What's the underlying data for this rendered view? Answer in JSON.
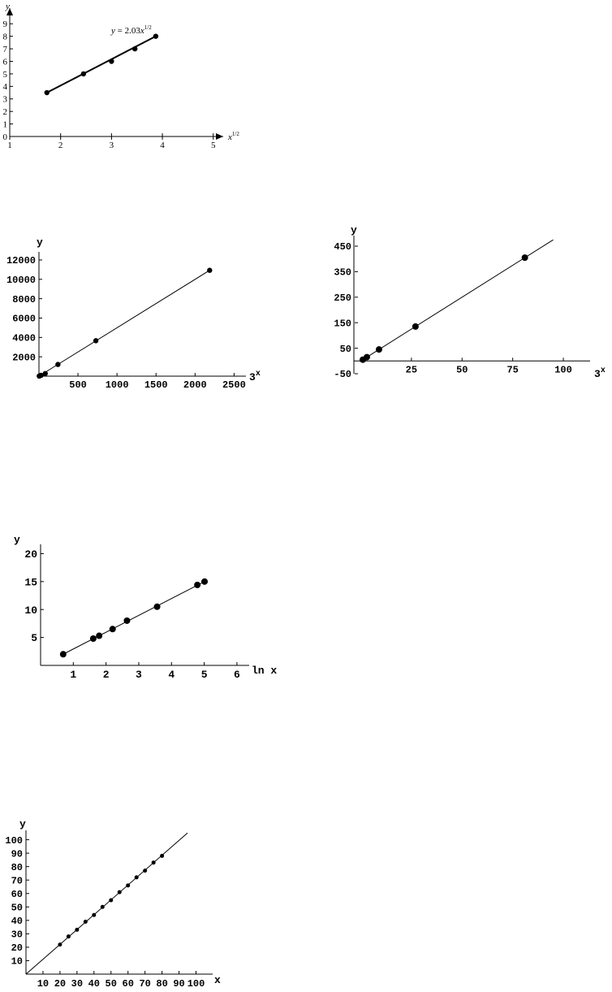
{
  "chart_data": [
    {
      "type": "scatter",
      "xlabel": "x^1/2",
      "ylabel": "y",
      "xlim": [
        1,
        5.1
      ],
      "ylim": [
        0,
        9.6
      ],
      "xticks": [
        1,
        2,
        3,
        4,
        5
      ],
      "yticks": [
        0,
        1,
        2,
        3,
        4,
        5,
        6,
        7,
        8,
        9
      ],
      "points": [
        [
          1.73,
          3.5
        ],
        [
          2.45,
          5.0
        ],
        [
          3.0,
          6.0
        ],
        [
          3.46,
          7.0
        ],
        [
          3.87,
          8.0
        ]
      ],
      "fit_line": [
        [
          1.73,
          3.5
        ],
        [
          3.87,
          8.0
        ]
      ],
      "annotation": "y = 2.03x^1/2"
    },
    {
      "type": "scatter",
      "xlabel": "3^x",
      "ylabel": "y",
      "xlim": [
        0,
        2600
      ],
      "ylim": [
        0,
        12500
      ],
      "xticks": [
        500,
        1000,
        1500,
        2000,
        2500
      ],
      "yticks": [
        2000,
        4000,
        6000,
        8000,
        10000,
        12000
      ],
      "points": [
        [
          3,
          10
        ],
        [
          9,
          30
        ],
        [
          27,
          90
        ],
        [
          81,
          270
        ],
        [
          243,
          1210
        ],
        [
          729,
          3660
        ],
        [
          2187,
          10930
        ]
      ],
      "fit_line": [
        [
          0,
          0
        ],
        [
          2187,
          10930
        ]
      ]
    },
    {
      "type": "scatter",
      "xlabel": "3^x",
      "ylabel": "y",
      "xlim": [
        -3,
        112
      ],
      "ylim": [
        -50,
        485
      ],
      "xticks": [
        25,
        50,
        75,
        100
      ],
      "yticks": [
        -50,
        50,
        150,
        250,
        350,
        450
      ],
      "points": [
        [
          1,
          5
        ],
        [
          3,
          15
        ],
        [
          9,
          45
        ],
        [
          27,
          135
        ],
        [
          81,
          405
        ]
      ],
      "fit_line": [
        [
          0,
          0
        ],
        [
          95,
          475
        ]
      ]
    },
    {
      "type": "scatter",
      "xlabel": "ln x",
      "ylabel": "y",
      "xlim": [
        0,
        6.2
      ],
      "ylim": [
        0,
        20.5
      ],
      "xticks": [
        1,
        2,
        3,
        4,
        5,
        6
      ],
      "yticks": [
        5,
        10,
        15,
        20
      ],
      "points": [
        [
          0.69,
          2.0
        ],
        [
          1.61,
          4.8
        ],
        [
          1.79,
          5.3
        ],
        [
          2.2,
          6.5
        ],
        [
          2.64,
          8.0
        ],
        [
          3.56,
          10.5
        ],
        [
          4.79,
          14.4
        ],
        [
          5.01,
          15.0
        ]
      ],
      "fit_line": [
        [
          0.69,
          2.0
        ],
        [
          5.01,
          15.0
        ]
      ]
    },
    {
      "type": "scatter",
      "xlabel": "x",
      "ylabel": "y",
      "xlim": [
        0,
        105
      ],
      "ylim": [
        0,
        107
      ],
      "xticks": [
        10,
        20,
        30,
        40,
        50,
        60,
        70,
        80,
        90,
        100
      ],
      "yticks": [
        10,
        20,
        30,
        40,
        50,
        60,
        70,
        80,
        90,
        100
      ],
      "points": [
        [
          20,
          22
        ],
        [
          25,
          28
        ],
        [
          30,
          33
        ],
        [
          35,
          39
        ],
        [
          40,
          44
        ],
        [
          45,
          50
        ],
        [
          50,
          55
        ],
        [
          55,
          61
        ],
        [
          60,
          66
        ],
        [
          65,
          72
        ],
        [
          70,
          77
        ],
        [
          75,
          83
        ],
        [
          80,
          88
        ]
      ],
      "fit_line": [
        [
          0,
          0
        ],
        [
          95,
          105
        ]
      ]
    }
  ]
}
